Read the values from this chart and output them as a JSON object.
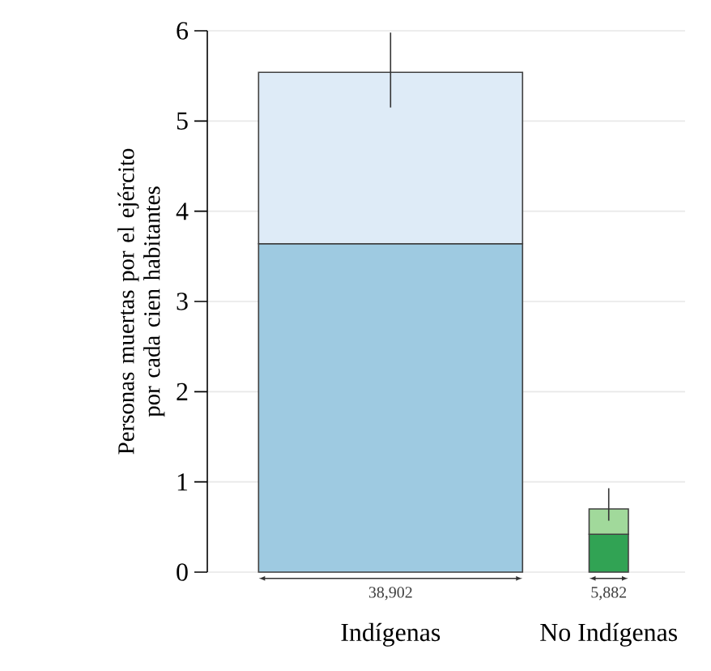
{
  "chart_data": {
    "type": "bar",
    "stacked": true,
    "ylabel": "Personas muertas por el ejército por cada cien habitantes",
    "categories": [
      "Indígenas",
      "No Indígenas"
    ],
    "series": [
      {
        "colors": [
          "#9ecae1",
          "#31a354"
        ],
        "values": [
          3.64,
          0.42
        ]
      },
      {
        "colors": [
          "#deebf7",
          "#a1d99b"
        ],
        "values": [
          1.9,
          0.28
        ],
        "errors": [
          [
            5.15,
            5.98
          ],
          [
            0.57,
            0.93
          ]
        ]
      }
    ],
    "ylim": [
      0,
      6
    ],
    "yticks": [
      0,
      1,
      2,
      3,
      4,
      5,
      6
    ],
    "grid": "y",
    "annotations": [
      "38,902",
      "5,882"
    ]
  }
}
